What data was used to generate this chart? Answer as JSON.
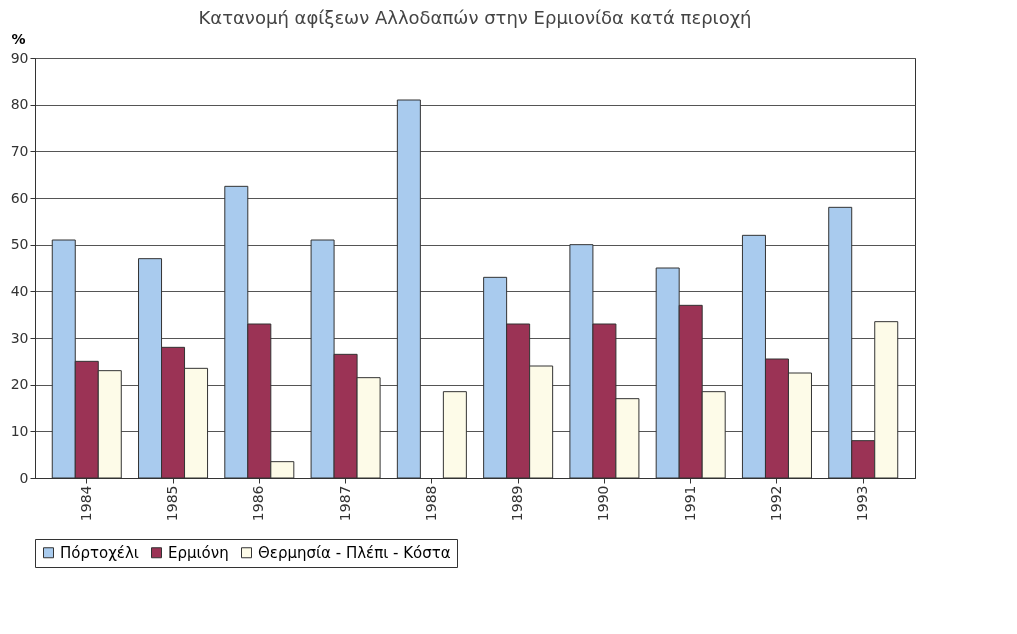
{
  "chart_data": {
    "type": "bar",
    "title": "Κατανομή αφίξεων Αλλοδαπών στην Ερμιονίδα κατά περιοχή",
    "ylabel": "%",
    "categories": [
      "1984",
      "1985",
      "1986",
      "1987",
      "1988",
      "1989",
      "1990",
      "1991",
      "1992",
      "1993"
    ],
    "series": [
      {
        "name": "Πόρτοχέλι",
        "color": "#a9cbee",
        "values": [
          51,
          47,
          62.5,
          51,
          81,
          43,
          50,
          45,
          52,
          58
        ]
      },
      {
        "name": "Ερμιόνη",
        "color": "#9b3355",
        "values": [
          25,
          28,
          33,
          26.5,
          null,
          33,
          33,
          37,
          25.5,
          8
        ]
      },
      {
        "name": "Θερμησία - Πλέπι - Κόστα",
        "color": "#fdfbe8",
        "values": [
          23,
          23.5,
          3.5,
          21.5,
          18.5,
          24,
          17,
          18.5,
          22.5,
          33.5
        ]
      }
    ],
    "ylim": [
      0,
      90
    ],
    "yticks": [
      0,
      10,
      20,
      30,
      40,
      50,
      60,
      70,
      80,
      90
    ],
    "grid": "y",
    "legend": "bottom"
  }
}
